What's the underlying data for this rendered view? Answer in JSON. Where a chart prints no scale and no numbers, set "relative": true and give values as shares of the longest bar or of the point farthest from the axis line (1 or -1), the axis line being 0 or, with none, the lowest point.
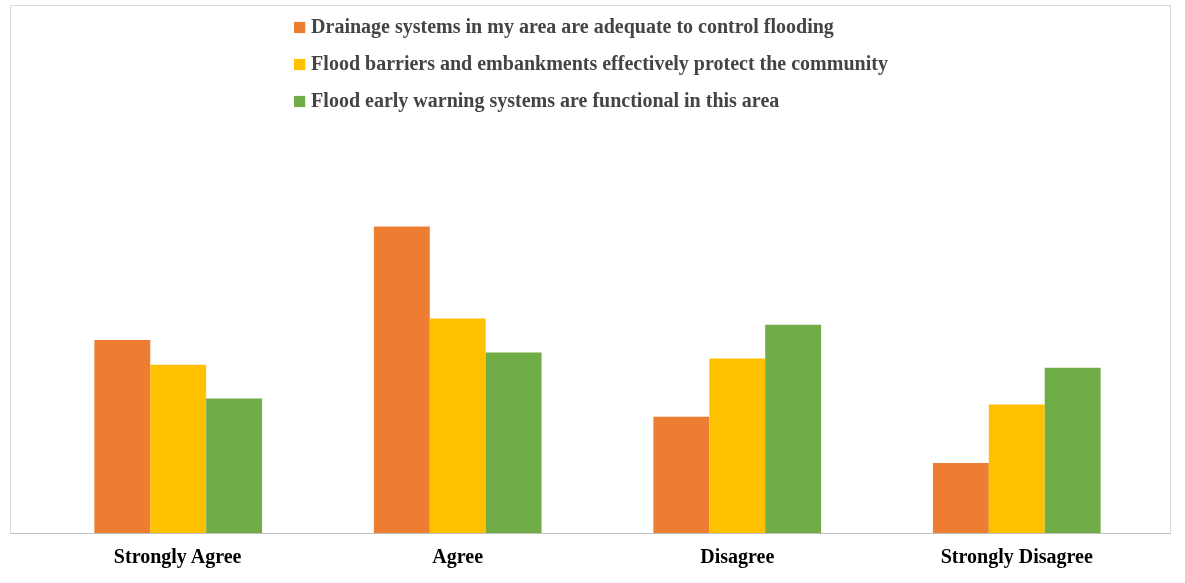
{
  "chart_data": {
    "type": "bar",
    "relative": true,
    "legend": "top",
    "grid": false,
    "categories": [
      "Strongly Agree",
      "Agree",
      "Disagree",
      "Strongly Disagree"
    ],
    "series": [
      {
        "name": "Drainage systems in my area are adequate to control flooding",
        "color": "#ed7d31",
        "values": [
          0.63,
          1,
          0.38,
          0.23
        ]
      },
      {
        "name": "Flood barriers and embankments effectively protect the community",
        "color": "#ffc000",
        "values": [
          0.55,
          0.7,
          0.57,
          0.42
        ]
      },
      {
        "name": "Flood early warning systems are functional in this area",
        "color": "#70ad47",
        "values": [
          0.44,
          0.59,
          0.68,
          0.54
        ]
      }
    ]
  }
}
